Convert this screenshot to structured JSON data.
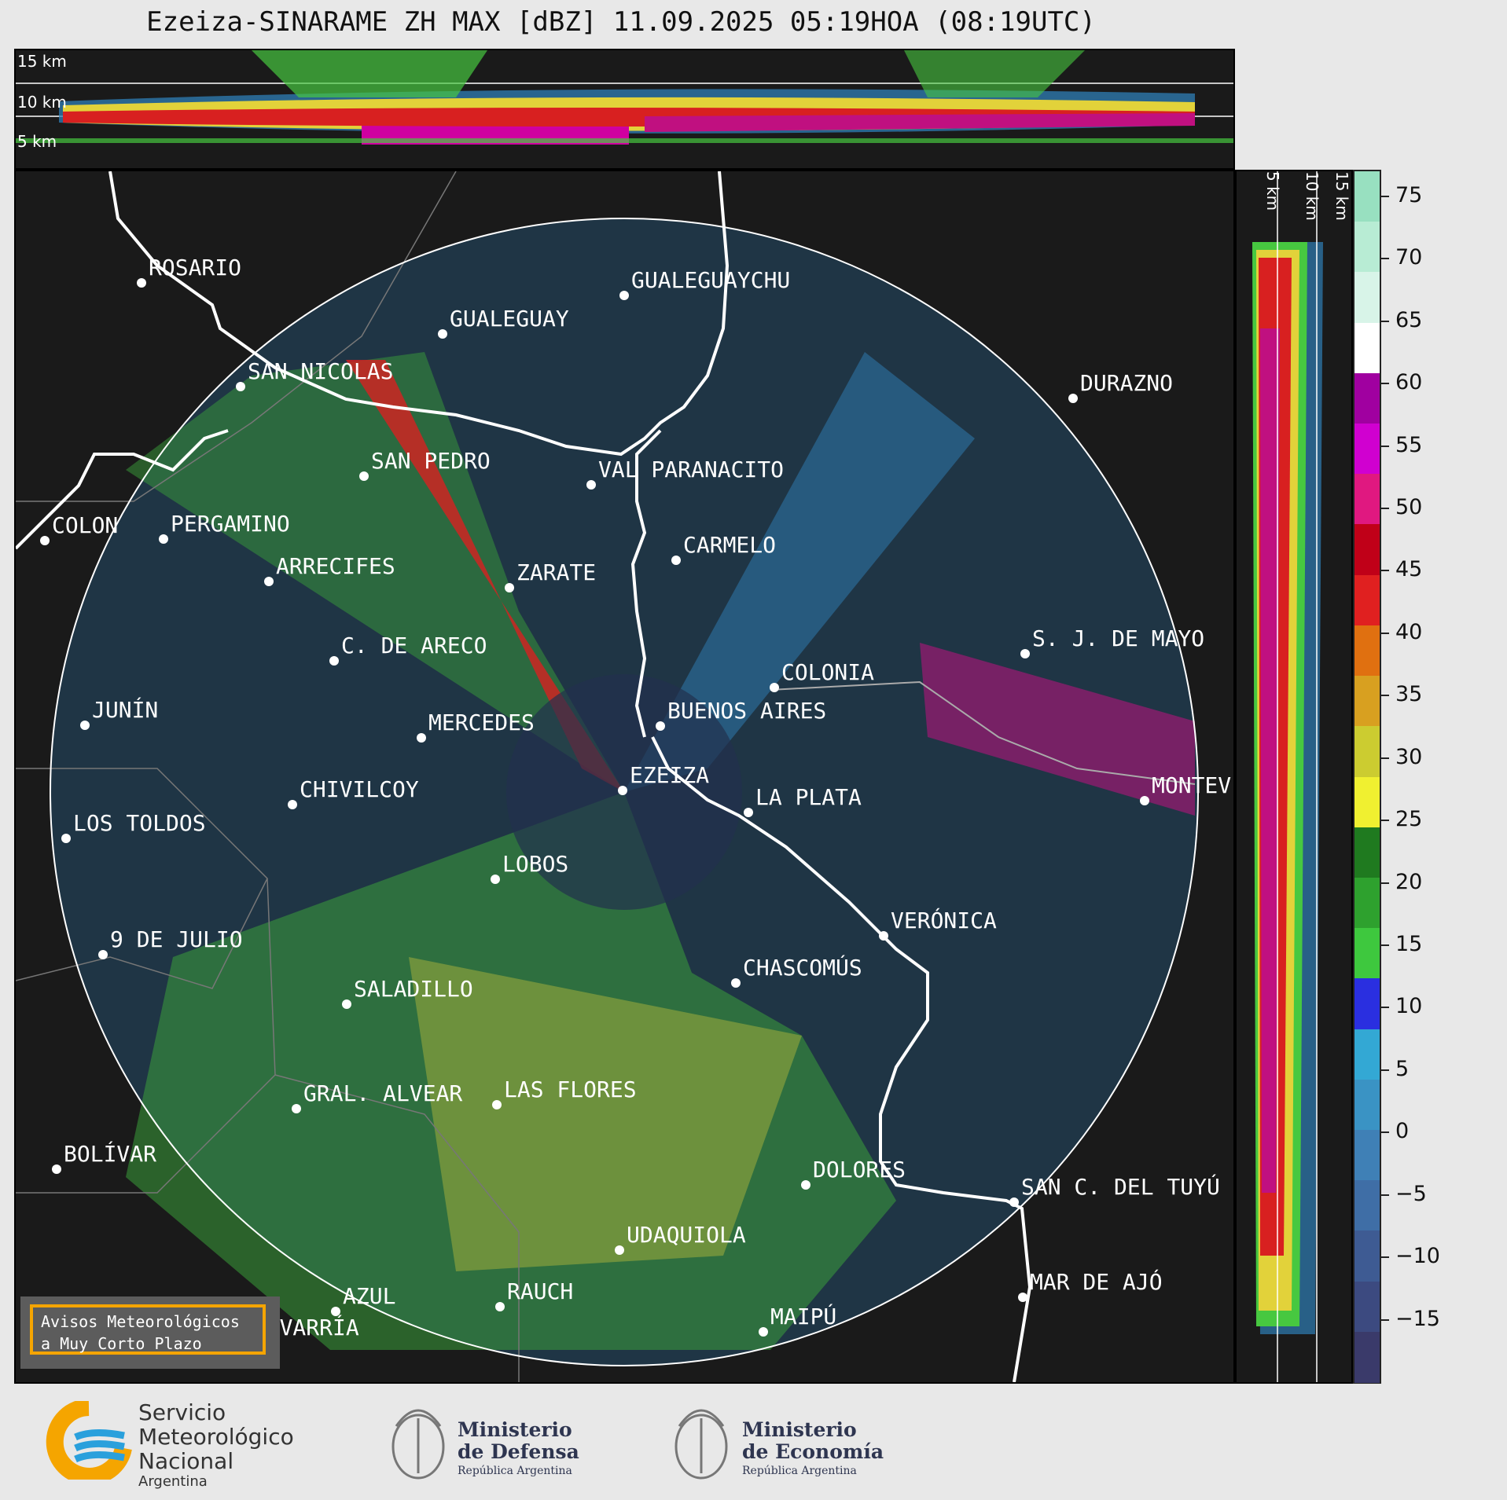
{
  "title": "Ezeiza-SINARAME ZH MAX [dBZ] 11.09.2025 05:19HOA (08:19UTC)",
  "top_section": {
    "altitude_labels": [
      "15 km",
      "10 km",
      "5 km"
    ]
  },
  "side_section": {
    "altitude_labels": [
      "5 km",
      "10 km",
      "15 km"
    ]
  },
  "colorbar": {
    "unit": "dBZ",
    "ticks": [
      "75",
      "70",
      "65",
      "60",
      "55",
      "50",
      "45",
      "40",
      "35",
      "30",
      "25",
      "20",
      "15",
      "10",
      "5",
      "0",
      "−5",
      "−10",
      "−15"
    ],
    "range": [
      -20,
      77
    ],
    "colors": [
      "#3a3a6a",
      "#3c4a80",
      "#3e5b93",
      "#3f6ea6",
      "#3f80b6",
      "#3a93c4",
      "#33a8d4",
      "#2a2fe0",
      "#3ec83e",
      "#2ea12e",
      "#1f7a1f",
      "#f0f030",
      "#cccc30",
      "#d8a020",
      "#e07010",
      "#e02020",
      "#c00018",
      "#e01880",
      "#d000d0",
      "#a000a0",
      "#ffffff",
      "#d8f4e8",
      "#b8ecd4",
      "#98e0c0"
    ]
  },
  "cities": [
    {
      "name": "ROSARIO"
    },
    {
      "name": "GUALEGUAYCHU"
    },
    {
      "name": "GUALEGUAY"
    },
    {
      "name": "SAN NICOLAS"
    },
    {
      "name": "DURAZNO"
    },
    {
      "name": "SAN PEDRO"
    },
    {
      "name": "VAL PARANACITO"
    },
    {
      "name": "COLON"
    },
    {
      "name": "PERGAMINO"
    },
    {
      "name": "CARMELO"
    },
    {
      "name": "ARRECIFES"
    },
    {
      "name": "ZARATE"
    },
    {
      "name": "S. J. DE MAYO"
    },
    {
      "name": "C. DE ARECO"
    },
    {
      "name": "COLONIA"
    },
    {
      "name": "JUNÍN"
    },
    {
      "name": "BUENOS AIRES"
    },
    {
      "name": "MERCEDES"
    },
    {
      "name": "EZEIZA"
    },
    {
      "name": "MONTEV"
    },
    {
      "name": "CHIVILCOY"
    },
    {
      "name": "LA PLATA"
    },
    {
      "name": "LOS TOLDOS"
    },
    {
      "name": "LOBOS"
    },
    {
      "name": "VERÓNICA"
    },
    {
      "name": "9 DE JULIO"
    },
    {
      "name": "CHASCOMÚS"
    },
    {
      "name": "SALADILLO"
    },
    {
      "name": "GRAL. ALVEAR"
    },
    {
      "name": "LAS FLORES"
    },
    {
      "name": "BOLÍVAR"
    },
    {
      "name": "DOLORES"
    },
    {
      "name": "SAN C. DEL TUYÚ"
    },
    {
      "name": "UDAQUIOLA"
    },
    {
      "name": "MAR DE AJÓ"
    },
    {
      "name": "AZUL"
    },
    {
      "name": "RAUCH"
    },
    {
      "name": "OLAVARRÍA"
    },
    {
      "name": "MAIPÚ"
    }
  ],
  "warning_box": {
    "line1": "Avisos Meteorológicos",
    "line2": "a Muy Corto Plazo",
    "accent": "#f5a500"
  },
  "logos": {
    "smn": {
      "line1": "Servicio",
      "line2": "Meteorológico",
      "line3": "Nacional",
      "line4": "Argentina"
    },
    "defensa": {
      "line1": "Ministerio",
      "line2": "de Defensa",
      "line3": "República Argentina"
    },
    "economia": {
      "line1": "Ministerio",
      "line2": "de Economía",
      "line3": "República Argentina"
    }
  }
}
